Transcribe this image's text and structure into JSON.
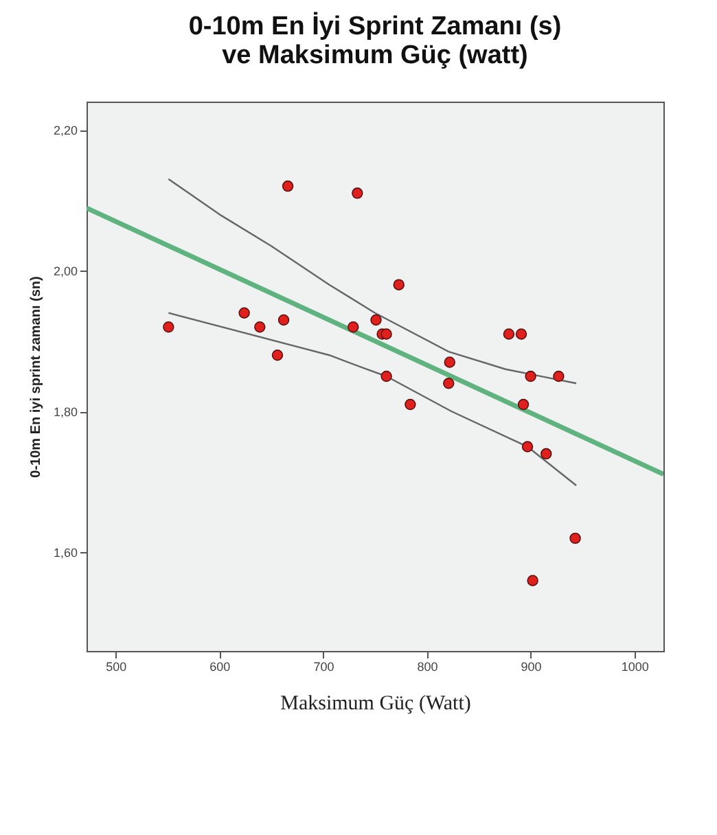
{
  "chart_data": {
    "type": "scatter",
    "title": "0-10m En İyi Sprint Zamanı (s)\nve Maksimum Güç (watt)",
    "xlabel": "Maksimum Güç (Watt)",
    "ylabel": "0-10m En iyi sprint zamanı (sn)",
    "xlim": [
      472,
      1028
    ],
    "ylim": [
      1.46,
      2.24
    ],
    "xticks": [
      500,
      600,
      700,
      800,
      900,
      1000
    ],
    "yticks": [
      {
        "value": 1.6,
        "label": "1,60"
      },
      {
        "value": 1.8,
        "label": "1,80"
      },
      {
        "value": 2.0,
        "label": "2,00"
      },
      {
        "value": 2.2,
        "label": "2,20"
      }
    ],
    "grid": false,
    "marker": "circle",
    "series": [
      {
        "type": "line",
        "marker": "none",
        "color": "#5fb37f",
        "x": [
          472,
          1028
        ],
        "values": [
          2.089,
          1.711
        ]
      },
      {
        "type": "line",
        "marker": "none",
        "color": "#666666",
        "x": [
          551,
          600,
          650,
          706,
          750,
          821,
          876,
          944
        ],
        "values": [
          2.13,
          2.08,
          2.035,
          1.98,
          1.94,
          1.885,
          1.86,
          1.84
        ]
      },
      {
        "type": "line",
        "marker": "none",
        "color": "#666666",
        "x": [
          551,
          706,
          742,
          761,
          824,
          897,
          944
        ],
        "values": [
          1.94,
          1.88,
          1.86,
          1.85,
          1.8,
          1.75,
          1.695
        ]
      },
      {
        "color": "#e0201c",
        "x": [
          551,
          624,
          639,
          662,
          656,
          666,
          729,
          733,
          773,
          751,
          757,
          761,
          761,
          784,
          822,
          821,
          879,
          891,
          900,
          927,
          893,
          897,
          915,
          943,
          902
        ],
        "values": [
          1.92,
          1.94,
          1.92,
          1.93,
          1.88,
          2.12,
          1.92,
          2.11,
          1.98,
          1.93,
          1.91,
          1.91,
          1.85,
          1.81,
          1.87,
          1.84,
          1.91,
          1.91,
          1.85,
          1.85,
          1.81,
          1.75,
          1.74,
          1.62,
          1.56
        ]
      }
    ]
  }
}
